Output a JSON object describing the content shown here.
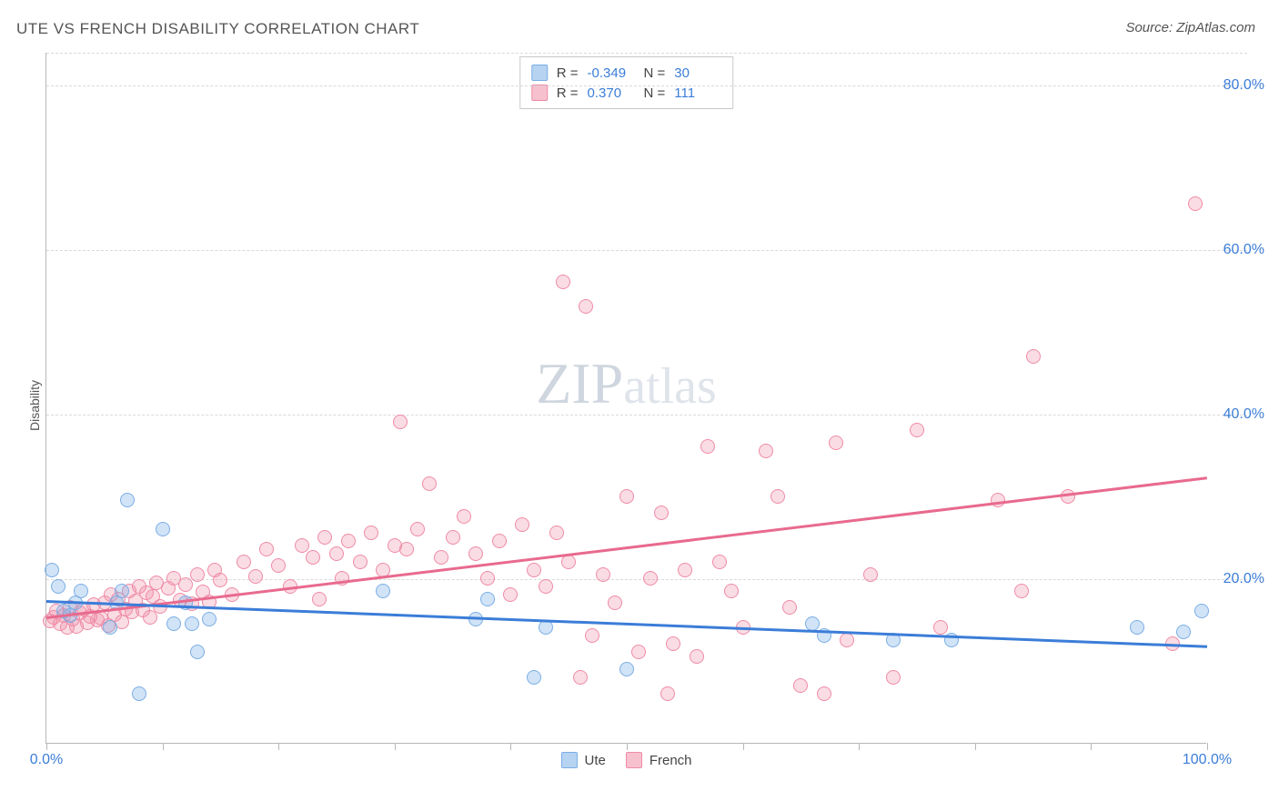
{
  "title": "UTE VS FRENCH DISABILITY CORRELATION CHART",
  "source": "Source: ZipAtlas.com",
  "ylabel": "Disability",
  "watermark": {
    "zip": "ZIP",
    "atlas": "atlas"
  },
  "chart": {
    "type": "scatter",
    "background_color": "#ffffff",
    "grid_color": "#d9d9d9",
    "axis_color": "#b7b7b7",
    "tick_label_color": "#3b7dd8",
    "tick_fontsize": 16,
    "title_fontsize": 17,
    "title_color": "#555555",
    "marker_radius": 8,
    "xlim": [
      0,
      100
    ],
    "ylim": [
      0,
      84
    ],
    "xticks": [
      0,
      10,
      20,
      30,
      40,
      50,
      60,
      70,
      80,
      90,
      100
    ],
    "xtick_labels": {
      "0": "0.0%",
      "100": "100.0%"
    },
    "yticks": [
      20,
      40,
      60,
      80
    ],
    "ytick_labels": {
      "20": "20.0%",
      "40": "40.0%",
      "60": "60.0%",
      "80": "80.0%"
    },
    "series": {
      "ute": {
        "label": "Ute",
        "color_fill": "rgba(122,174,230,0.35)",
        "color_stroke": "#7aaee6",
        "trend_color": "#3b7dd8",
        "R": "-0.349",
        "N": "30",
        "trend": {
          "x1": 0,
          "y1": 17.5,
          "x2": 100,
          "y2": 12.0
        },
        "points": [
          [
            0.5,
            21.0
          ],
          [
            1.0,
            19.0
          ],
          [
            1.5,
            16.0
          ],
          [
            2.0,
            15.5
          ],
          [
            2.5,
            17.0
          ],
          [
            3.0,
            18.5
          ],
          [
            5.5,
            14.0
          ],
          [
            6.0,
            17.0
          ],
          [
            6.5,
            18.5
          ],
          [
            7.0,
            29.5
          ],
          [
            8.0,
            6.0
          ],
          [
            10.0,
            26.0
          ],
          [
            11.0,
            14.5
          ],
          [
            12.0,
            17.0
          ],
          [
            12.5,
            14.5
          ],
          [
            13.0,
            11.0
          ],
          [
            14.0,
            15.0
          ],
          [
            29.0,
            18.5
          ],
          [
            37.0,
            15.0
          ],
          [
            38.0,
            17.5
          ],
          [
            42.0,
            8.0
          ],
          [
            43.0,
            14.0
          ],
          [
            50.0,
            9.0
          ],
          [
            66.0,
            14.5
          ],
          [
            67.0,
            13.0
          ],
          [
            73.0,
            12.5
          ],
          [
            78.0,
            12.5
          ],
          [
            94.0,
            14.0
          ],
          [
            98.0,
            13.5
          ],
          [
            99.5,
            16.0
          ]
        ]
      },
      "french": {
        "label": "French",
        "color_fill": "rgba(240,140,165,0.30)",
        "color_stroke": "#ef8ba6",
        "trend_color": "#e86a8e",
        "R": "0.370",
        "N": "111",
        "trend": {
          "x1": 0,
          "y1": 15.5,
          "x2": 100,
          "y2": 32.5
        },
        "points": [
          [
            0.3,
            14.8
          ],
          [
            0.6,
            15.2
          ],
          [
            0.9,
            16.0
          ],
          [
            1.2,
            14.5
          ],
          [
            1.5,
            15.5
          ],
          [
            1.8,
            14.0
          ],
          [
            2.0,
            16.5
          ],
          [
            2.3,
            15.0
          ],
          [
            2.6,
            14.2
          ],
          [
            2.9,
            15.8
          ],
          [
            3.2,
            16.2
          ],
          [
            3.5,
            14.6
          ],
          [
            3.8,
            15.4
          ],
          [
            4.1,
            16.8
          ],
          [
            4.4,
            14.9
          ],
          [
            4.7,
            15.1
          ],
          [
            5.0,
            17.0
          ],
          [
            5.3,
            14.3
          ],
          [
            5.6,
            18.0
          ],
          [
            5.9,
            15.6
          ],
          [
            6.2,
            17.5
          ],
          [
            6.5,
            14.7
          ],
          [
            6.8,
            16.3
          ],
          [
            7.1,
            18.5
          ],
          [
            7.4,
            15.9
          ],
          [
            7.7,
            17.2
          ],
          [
            8.0,
            19.0
          ],
          [
            8.3,
            16.1
          ],
          [
            8.6,
            18.2
          ],
          [
            8.9,
            15.3
          ],
          [
            9.2,
            17.8
          ],
          [
            9.5,
            19.5
          ],
          [
            9.8,
            16.6
          ],
          [
            10.5,
            18.8
          ],
          [
            11.0,
            20.0
          ],
          [
            11.5,
            17.4
          ],
          [
            12.0,
            19.2
          ],
          [
            12.5,
            16.9
          ],
          [
            13.0,
            20.5
          ],
          [
            13.5,
            18.4
          ],
          [
            14.0,
            17.1
          ],
          [
            14.5,
            21.0
          ],
          [
            15.0,
            19.8
          ],
          [
            16.0,
            18.0
          ],
          [
            17.0,
            22.0
          ],
          [
            18.0,
            20.2
          ],
          [
            19.0,
            23.5
          ],
          [
            20.0,
            21.5
          ],
          [
            21.0,
            19.0
          ],
          [
            22.0,
            24.0
          ],
          [
            23.0,
            22.5
          ],
          [
            23.5,
            17.5
          ],
          [
            24.0,
            25.0
          ],
          [
            25.0,
            23.0
          ],
          [
            25.5,
            20.0
          ],
          [
            26.0,
            24.5
          ],
          [
            27.0,
            22.0
          ],
          [
            28.0,
            25.5
          ],
          [
            29.0,
            21.0
          ],
          [
            30.0,
            24.0
          ],
          [
            30.5,
            39.0
          ],
          [
            31.0,
            23.5
          ],
          [
            32.0,
            26.0
          ],
          [
            33.0,
            31.5
          ],
          [
            34.0,
            22.5
          ],
          [
            35.0,
            25.0
          ],
          [
            36.0,
            27.5
          ],
          [
            37.0,
            23.0
          ],
          [
            38.0,
            20.0
          ],
          [
            39.0,
            24.5
          ],
          [
            40.0,
            18.0
          ],
          [
            41.0,
            26.5
          ],
          [
            42.0,
            21.0
          ],
          [
            43.0,
            19.0
          ],
          [
            44.0,
            25.5
          ],
          [
            44.5,
            56.0
          ],
          [
            45.0,
            22.0
          ],
          [
            46.0,
            8.0
          ],
          [
            46.5,
            53.0
          ],
          [
            47.0,
            13.0
          ],
          [
            48.0,
            20.5
          ],
          [
            49.0,
            17.0
          ],
          [
            50.0,
            30.0
          ],
          [
            51.0,
            11.0
          ],
          [
            52.0,
            20.0
          ],
          [
            53.0,
            28.0
          ],
          [
            53.5,
            6.0
          ],
          [
            54.0,
            12.0
          ],
          [
            55.0,
            21.0
          ],
          [
            56.0,
            10.5
          ],
          [
            57.0,
            36.0
          ],
          [
            58.0,
            22.0
          ],
          [
            59.0,
            18.5
          ],
          [
            60.0,
            14.0
          ],
          [
            62.0,
            35.5
          ],
          [
            63.0,
            30.0
          ],
          [
            65.0,
            7.0
          ],
          [
            67.0,
            6.0
          ],
          [
            68.0,
            36.5
          ],
          [
            69.0,
            12.5
          ],
          [
            73.0,
            8.0
          ],
          [
            75.0,
            38.0
          ],
          [
            82.0,
            29.5
          ],
          [
            84.0,
            18.5
          ],
          [
            85.0,
            47.0
          ],
          [
            88.0,
            30.0
          ],
          [
            99.0,
            65.5
          ],
          [
            97.0,
            12.0
          ],
          [
            71.0,
            20.5
          ],
          [
            77.0,
            14.0
          ],
          [
            64.0,
            16.5
          ]
        ]
      }
    }
  },
  "stats_labels": {
    "R": "R =",
    "N": "N ="
  }
}
